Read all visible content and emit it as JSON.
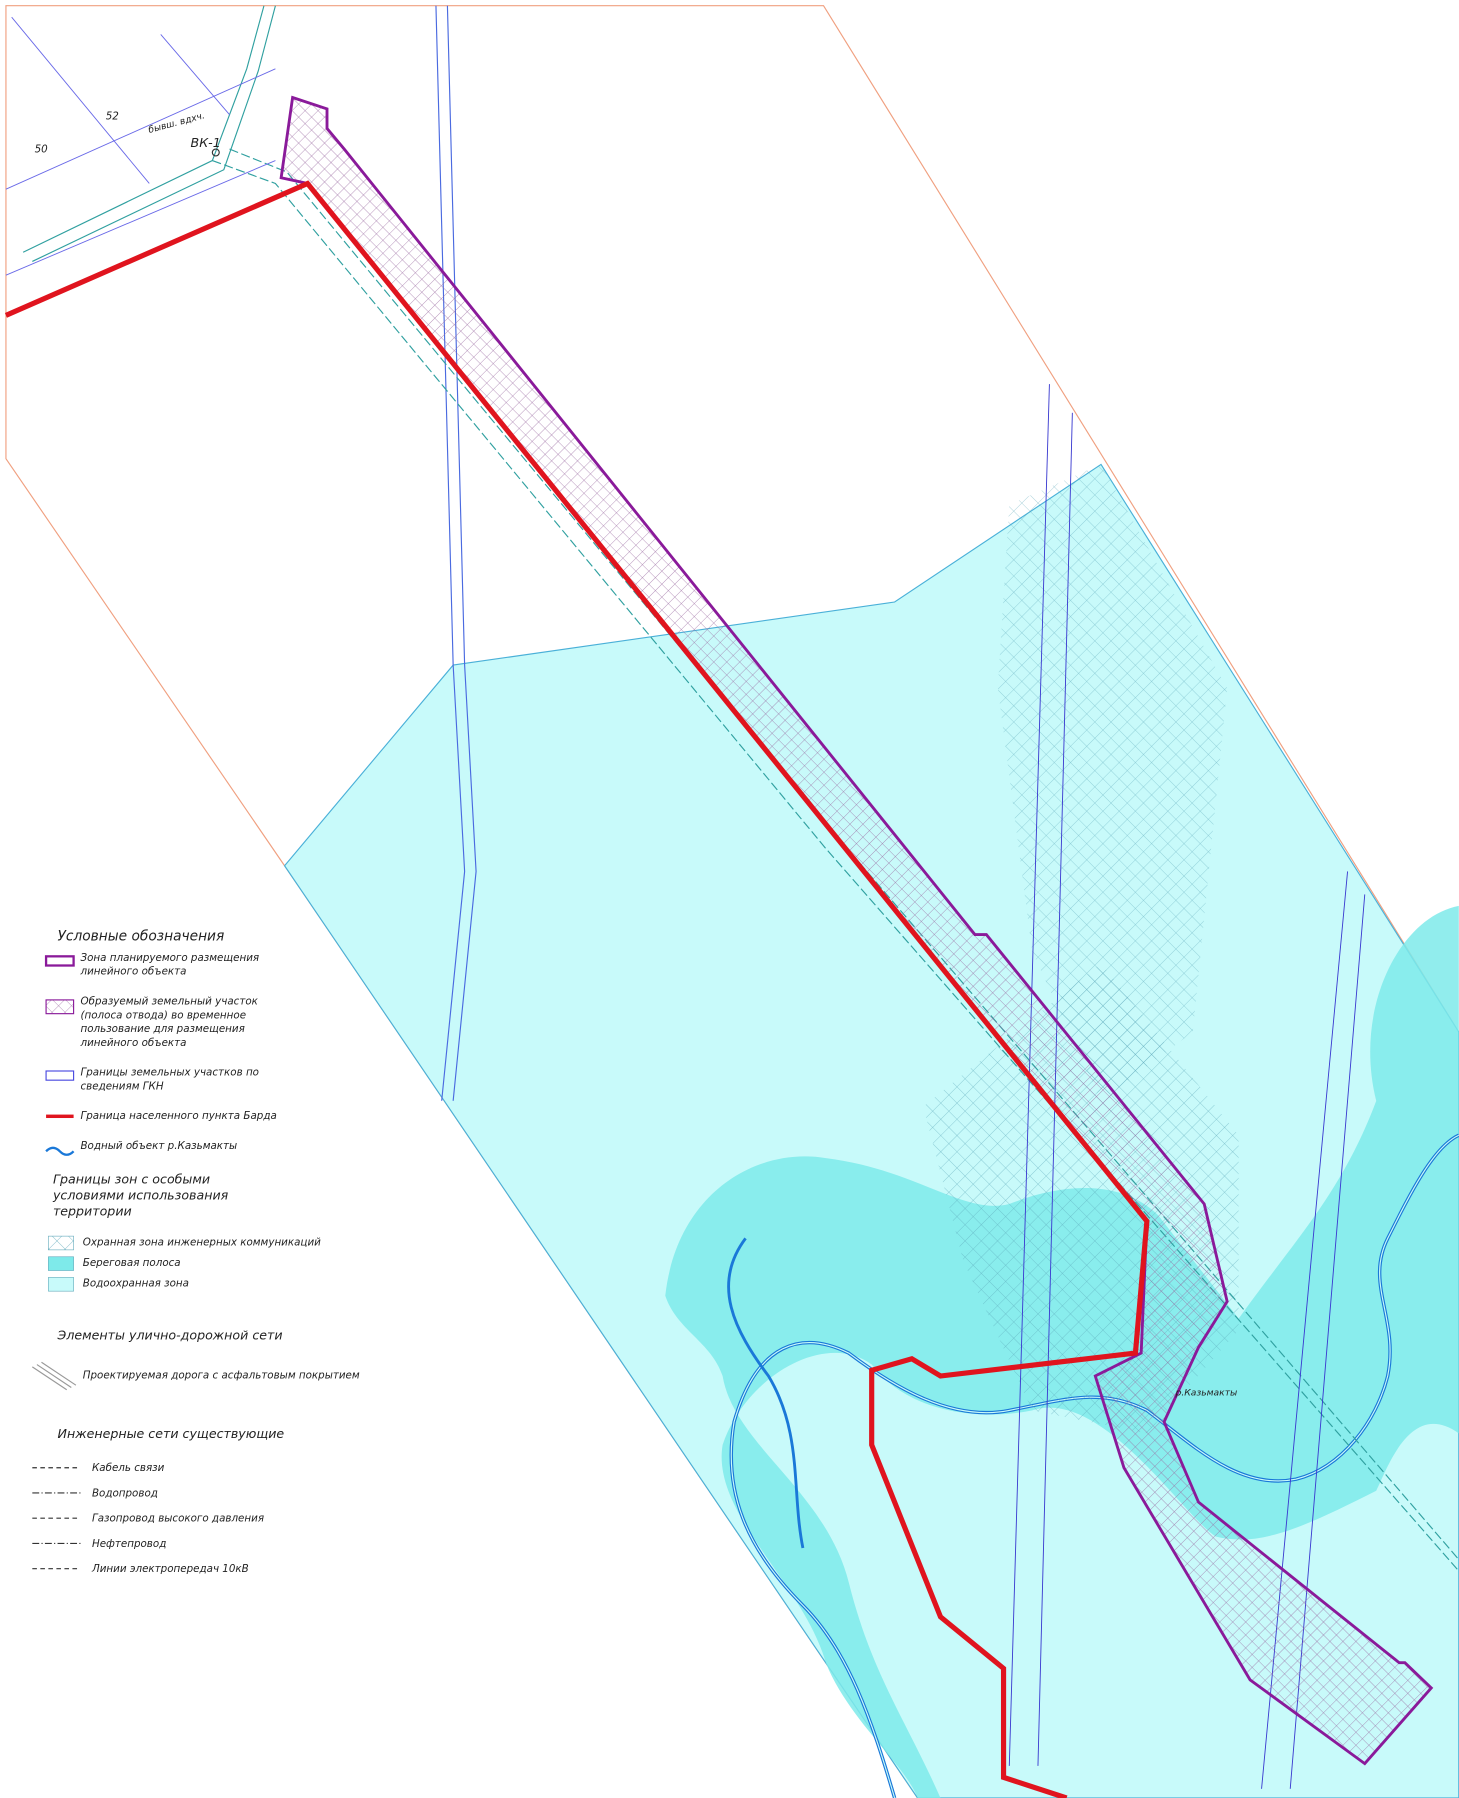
{
  "map": {
    "labels": {
      "parcel_52": "52",
      "parcel_50": "50",
      "former": "бывш. вдхч.",
      "well": "ВК-1",
      "river": "р.Казьмакты"
    },
    "legend": {
      "title": "Условные обозначения",
      "items": [
        "Зона планируемого размещения линейного объекта",
        "Образуемый земельный участок (полоса отвода) во временное пользование для размещения линейного объекта",
        "Границы земельных участков по сведениям ГКН",
        "Граница населенного пункта Барда",
        "Водный объект р.Казьмакты"
      ],
      "zones_title": "Границы зон с особыми условиями использования территории",
      "zones": [
        "Охранная зона инженерных коммуникаций",
        "Береговая полоса",
        "Водоохранная зона"
      ],
      "roads_title": "Элементы улично-дорожной сети",
      "roads": [
        "Проектируемая дорога с асфальтовым покрытием"
      ],
      "networks_title": "Инженерные сети существующие",
      "networks": [
        "Кабель связи",
        "Водопровод",
        "Газопровод высокого давления",
        "Нефтепровод",
        "Линии электропередач 10кВ"
      ]
    }
  }
}
